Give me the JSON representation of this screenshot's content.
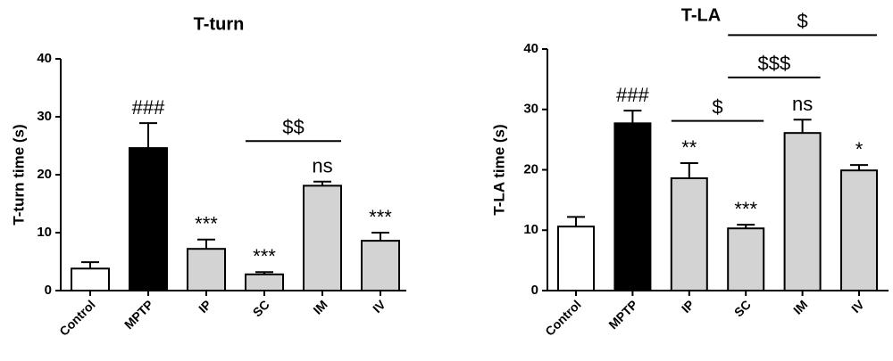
{
  "chart_data": [
    {
      "type": "bar",
      "title": "T-turn",
      "ylabel": "T-turn time (s)",
      "categories": [
        "Control",
        "MPTP",
        "IP",
        "SC",
        "IM",
        "IV"
      ],
      "values": [
        3.8,
        24.6,
        7.2,
        2.8,
        18.1,
        8.6
      ],
      "errors": [
        1.1,
        4.3,
        1.6,
        0.4,
        0.7,
        1.4
      ],
      "colors": [
        "#ffffff",
        "#000000",
        "#d3d3d3",
        "#d3d3d3",
        "#d3d3d3",
        "#d3d3d3"
      ],
      "annotations": [
        null,
        "###",
        "***",
        "***",
        "ns",
        "***"
      ],
      "brackets": [
        {
          "from": 3,
          "to": 4,
          "label": "$$"
        }
      ],
      "ylim": [
        0,
        40
      ],
      "yticks": [
        0,
        10,
        20,
        30,
        40
      ]
    },
    {
      "type": "bar",
      "title": "T-LA",
      "ylabel": "T-LA time (s)",
      "categories": [
        "Control",
        "MPTP",
        "IP",
        "SC",
        "IM",
        "IV"
      ],
      "values": [
        10.6,
        27.7,
        18.6,
        10.3,
        26.1,
        19.9
      ],
      "errors": [
        1.6,
        2.1,
        2.5,
        0.6,
        2.2,
        0.9
      ],
      "colors": [
        "#ffffff",
        "#000000",
        "#d3d3d3",
        "#d3d3d3",
        "#d3d3d3",
        "#d3d3d3"
      ],
      "annotations": [
        null,
        "###",
        "**",
        "***",
        "ns",
        "*"
      ],
      "brackets": [
        {
          "from": 2,
          "to": 3,
          "label": "$"
        },
        {
          "from": 3,
          "to": 4,
          "label": "$$$"
        },
        {
          "from": 3,
          "to": 5,
          "label": "$"
        }
      ],
      "ylim": [
        0,
        40
      ],
      "yticks": [
        0,
        10,
        20,
        30,
        40
      ]
    }
  ]
}
